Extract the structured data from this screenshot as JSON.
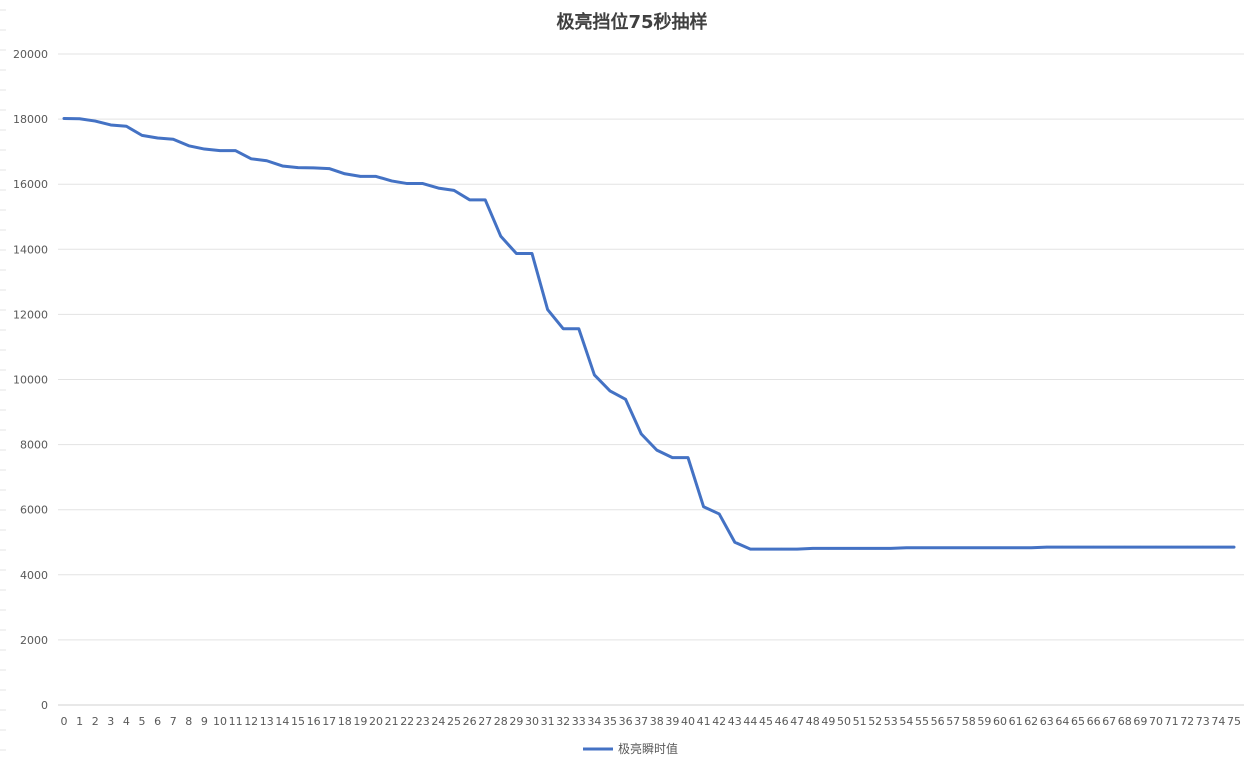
{
  "chart_data": {
    "type": "line",
    "title": "极亮挡位75秒抽样",
    "xlabel": "",
    "ylabel": "",
    "ylim": [
      0,
      20000
    ],
    "yticks": [
      0,
      2000,
      4000,
      6000,
      8000,
      10000,
      12000,
      14000,
      16000,
      18000,
      20000
    ],
    "grid": true,
    "legend_position": "bottom",
    "x": [
      0,
      1,
      2,
      3,
      4,
      5,
      6,
      7,
      8,
      9,
      10,
      11,
      12,
      13,
      14,
      15,
      16,
      17,
      18,
      19,
      20,
      21,
      22,
      23,
      24,
      25,
      26,
      27,
      28,
      29,
      30,
      31,
      32,
      33,
      34,
      35,
      36,
      37,
      38,
      39,
      40,
      41,
      42,
      43,
      44,
      45,
      46,
      47,
      48,
      49,
      50,
      51,
      52,
      53,
      54,
      55,
      56,
      57,
      58,
      59,
      60,
      61,
      62,
      63,
      64,
      65,
      66,
      67,
      68,
      69,
      70,
      71,
      72,
      73,
      74,
      75
    ],
    "series": [
      {
        "name": "极亮瞬时值",
        "color": "#4472C4",
        "values": [
          18020,
          18010,
          17940,
          17820,
          17780,
          17500,
          17420,
          17380,
          17180,
          17080,
          17030,
          17030,
          16780,
          16720,
          16560,
          16510,
          16500,
          16480,
          16320,
          16240,
          16240,
          16100,
          16020,
          16020,
          15880,
          15810,
          15520,
          15520,
          14400,
          13870,
          13870,
          12150,
          11560,
          11560,
          10140,
          9650,
          9390,
          8330,
          7830,
          7600,
          7600,
          6090,
          5870,
          5000,
          4790,
          4790,
          4790,
          4790,
          4810,
          4810,
          4810,
          4810,
          4810,
          4810,
          4830,
          4830,
          4830,
          4830,
          4830,
          4830,
          4830,
          4830,
          4830,
          4850,
          4850,
          4850,
          4850,
          4850,
          4850,
          4850,
          4850,
          4850,
          4850,
          4850,
          4850,
          4850
        ]
      }
    ]
  }
}
